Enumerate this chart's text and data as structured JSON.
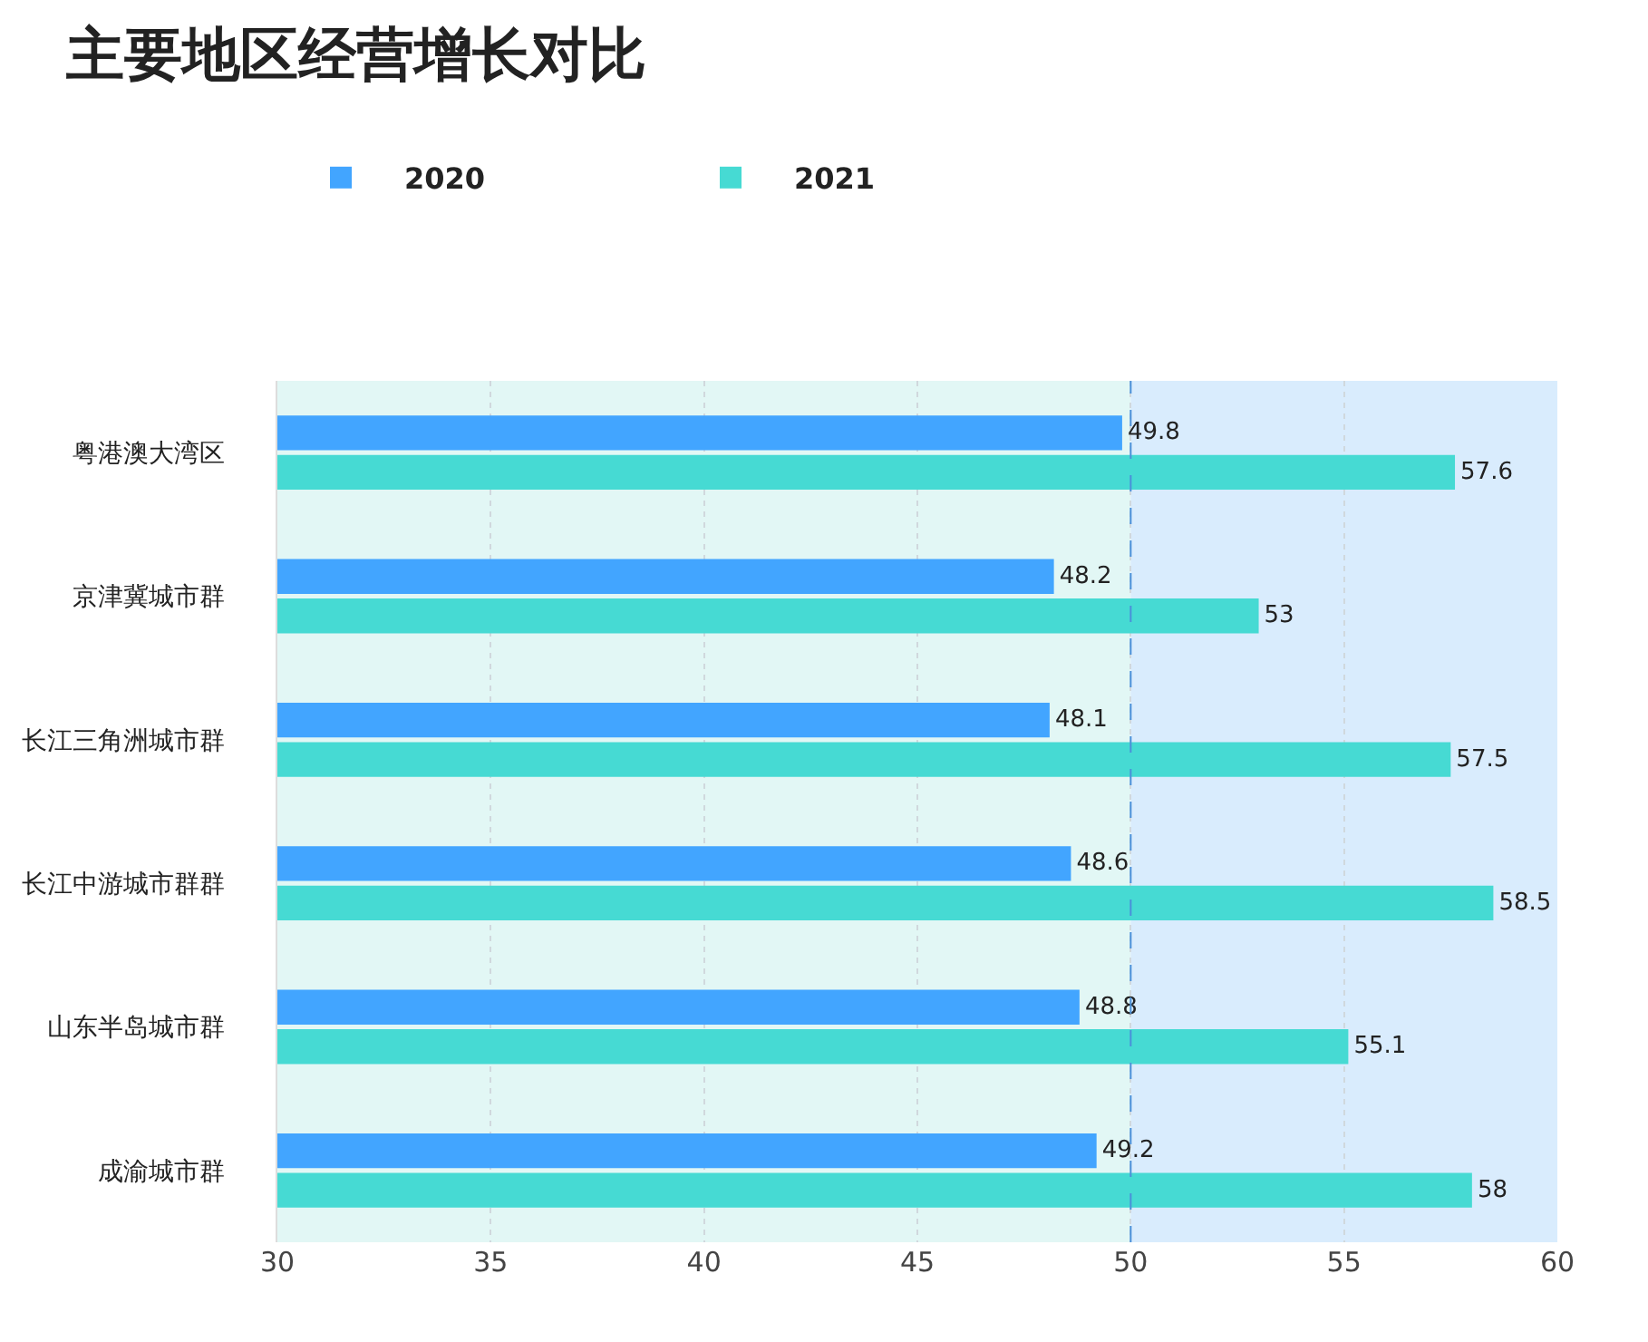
{
  "chart_data": {
    "type": "bar",
    "orientation": "horizontal",
    "title": "主要地区经营增长对比",
    "categories": [
      "粤港澳大湾区",
      "京津冀城市群",
      "长江三角洲城市群",
      "长江中游城市群群",
      "山东半岛城市群",
      "成渝城市群"
    ],
    "series": [
      {
        "name": "2020",
        "color": "#42a5ff",
        "values": [
          49.8,
          48.2,
          48.1,
          48.6,
          48.8,
          49.2
        ]
      },
      {
        "name": "2021",
        "color": "#46dad3",
        "values": [
          57.6,
          53,
          57.5,
          58.5,
          55.1,
          58
        ]
      }
    ],
    "xlim": [
      30,
      60
    ],
    "xticks": [
      30,
      35,
      40,
      45,
      50,
      55,
      60
    ],
    "grid": "x",
    "legend": "top left",
    "data_labels": true,
    "bands": [
      {
        "axis": "x",
        "from": 30,
        "to": 50,
        "color": "#e2f7f5"
      },
      {
        "axis": "x",
        "from": 50,
        "to": 60,
        "color": "#d9ecfd"
      }
    ],
    "ref_lines": [
      {
        "axis": "x",
        "value": 50,
        "color": "#4a90d9",
        "line_style": "dashed"
      }
    ]
  }
}
